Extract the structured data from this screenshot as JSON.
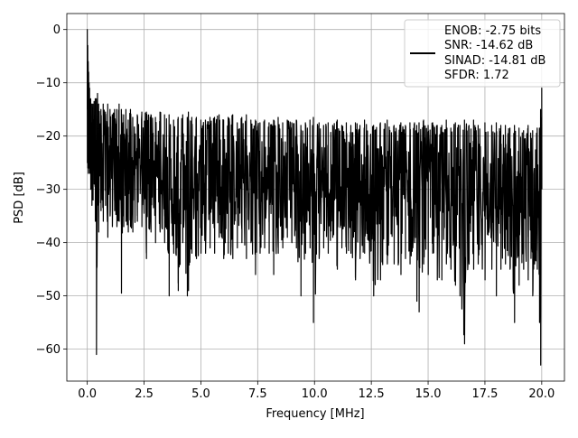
{
  "chart_data": {
    "type": "line",
    "title": "",
    "xlabel": "Frequency [MHz]",
    "ylabel": "PSD [dB]",
    "xlim": [
      -0.9,
      21.0
    ],
    "ylim": [
      -66.0,
      3.0
    ],
    "xticks": [
      0.0,
      2.5,
      5.0,
      7.5,
      10.0,
      12.5,
      15.0,
      17.5,
      20.0
    ],
    "xtick_labels": [
      "0.0",
      "2.5",
      "5.0",
      "7.5",
      "10.0",
      "12.5",
      "15.0",
      "17.5",
      "20.0"
    ],
    "yticks": [
      0,
      -10,
      -20,
      -30,
      -40,
      -50,
      -60
    ],
    "ytick_labels": [
      "0",
      "−10",
      "−20",
      "−30",
      "−40",
      "−50",
      "−60"
    ],
    "grid": true,
    "legend_position": "top-right",
    "legend_lines": [
      "ENOB: -2.75 bits",
      "SNR: -14.62 dB",
      "SINAD: -14.81 dB",
      "SFDR: 1.72"
    ],
    "series": [
      {
        "color": "#000000",
        "x": [
          0.0,
          0.02,
          0.04,
          0.06,
          0.08,
          0.1,
          0.15,
          0.2,
          0.25,
          0.3,
          0.35,
          0.4,
          0.45,
          0.5,
          0.6,
          0.7,
          0.8,
          0.9,
          1.0,
          1.1,
          1.2,
          1.3,
          1.4,
          1.5,
          1.6,
          1.7,
          1.8,
          1.9,
          2.0,
          2.2,
          2.4,
          2.6,
          2.8,
          3.0,
          3.2,
          3.4,
          3.6,
          3.8,
          4.0,
          4.2,
          4.4,
          4.45,
          4.6,
          4.8,
          5.0,
          5.2,
          5.4,
          5.6,
          5.8,
          6.0,
          6.2,
          6.4,
          6.6,
          6.8,
          7.0,
          7.2,
          7.4,
          7.6,
          7.8,
          8.0,
          8.2,
          8.4,
          8.6,
          8.8,
          9.0,
          9.2,
          9.4,
          9.6,
          9.8,
          9.95,
          10.2,
          10.4,
          10.6,
          10.8,
          11.0,
          11.2,
          11.4,
          11.6,
          11.8,
          12.0,
          12.2,
          12.6,
          12.9,
          13.2,
          13.5,
          13.8,
          14.0,
          14.2,
          14.4,
          14.5,
          14.6,
          14.8,
          15.0,
          15.2,
          15.4,
          15.6,
          15.8,
          16.0,
          16.2,
          16.4,
          16.6,
          16.8,
          17.0,
          17.2,
          17.5,
          17.8,
          18.0,
          18.2,
          18.4,
          18.6,
          18.8,
          19.0,
          19.2,
          19.4,
          19.6,
          19.8,
          19.9,
          19.95,
          20.0
        ],
        "y_upper": [
          0.0,
          -3.0,
          -6.0,
          -8.0,
          -10.0,
          -11.0,
          -13.0,
          -14.0,
          -14.0,
          -13.5,
          -13.0,
          -13.0,
          -12.0,
          -14.0,
          -15.0,
          -14.0,
          -15.5,
          -14.0,
          -15.0,
          -16.0,
          -15.0,
          -15.0,
          -14.0,
          -15.0,
          -16.0,
          -15.0,
          -17.0,
          -15.0,
          -16.5,
          -16.0,
          -15.5,
          -15.5,
          -16.0,
          -16.5,
          -15.5,
          -16.0,
          -16.0,
          -17.0,
          -16.5,
          -16.0,
          -16.5,
          -15.5,
          -16.5,
          -16.5,
          -17.0,
          -17.0,
          -16.5,
          -16.5,
          -16.0,
          -17.0,
          -16.5,
          -16.0,
          -17.5,
          -16.5,
          -16.0,
          -17.0,
          -17.0,
          -17.5,
          -17.0,
          -17.5,
          -17.0,
          -16.5,
          -17.5,
          -17.0,
          -17.5,
          -17.0,
          -18.0,
          -17.5,
          -17.0,
          -16.5,
          -17.5,
          -18.0,
          -17.5,
          -18.0,
          -17.0,
          -18.0,
          -17.5,
          -18.0,
          -17.5,
          -18.0,
          -17.0,
          -18.0,
          -17.5,
          -17.0,
          -18.0,
          -17.5,
          -18.0,
          -17.5,
          -17.5,
          -18.0,
          -17.5,
          -17.0,
          -18.0,
          -17.5,
          -18.0,
          -18.0,
          -17.0,
          -18.5,
          -17.5,
          -18.0,
          -17.0,
          -18.0,
          -17.0,
          -18.0,
          -17.5,
          -18.0,
          -17.5,
          -18.0,
          -18.0,
          -18.5,
          -18.0,
          -18.5,
          -19.0,
          -18.0,
          -19.0,
          -18.5,
          -18.5,
          -15.0,
          -11.0
        ],
        "y_lower": [
          -25.0,
          -26.0,
          -27.0,
          -26.0,
          -25.0,
          -27.0,
          -30.0,
          -33.0,
          -32.0,
          -29.0,
          -36.0,
          -61.0,
          -33.0,
          -38.0,
          -34.0,
          -36.0,
          -33.0,
          -39.0,
          -35.0,
          -37.0,
          -34.0,
          -37.0,
          -36.0,
          -49.5,
          -37.0,
          -36.0,
          -38.0,
          -37.0,
          -38.0,
          -36.0,
          -37.0,
          -43.0,
          -38.0,
          -40.0,
          -38.0,
          -40.0,
          -50.0,
          -42.0,
          -49.0,
          -40.0,
          -50.0,
          -49.0,
          -42.0,
          -43.0,
          -42.0,
          -42.0,
          -41.0,
          -42.0,
          -39.0,
          -43.0,
          -42.0,
          -43.0,
          -41.0,
          -40.0,
          -43.0,
          -40.0,
          -46.0,
          -42.0,
          -41.0,
          -42.0,
          -46.0,
          -42.0,
          -41.0,
          -39.0,
          -40.0,
          -41.0,
          -50.0,
          -42.0,
          -41.0,
          -55.0,
          -43.0,
          -41.0,
          -42.0,
          -39.0,
          -45.0,
          -41.0,
          -42.0,
          -42.0,
          -47.0,
          -43.0,
          -42.0,
          -50.0,
          -47.0,
          -44.0,
          -44.0,
          -46.0,
          -43.0,
          -44.0,
          -40.0,
          -51.0,
          -53.0,
          -44.0,
          -46.0,
          -42.0,
          -47.0,
          -47.0,
          -44.0,
          -45.0,
          -48.0,
          -50.0,
          -59.0,
          -44.0,
          -45.0,
          -44.0,
          -47.0,
          -45.0,
          -50.0,
          -45.0,
          -44.0,
          -45.0,
          -55.0,
          -48.0,
          -45.0,
          -47.0,
          -50.0,
          -45.0,
          -55.0,
          -63.0,
          -30.0
        ]
      }
    ]
  }
}
